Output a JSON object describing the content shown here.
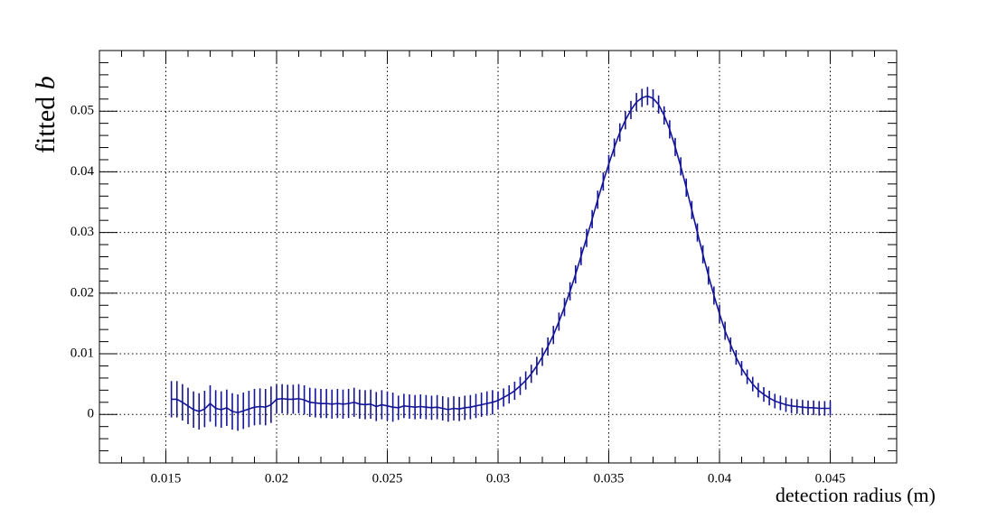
{
  "chart_data": {
    "type": "errorbar_line",
    "x_label": "detection radius (m)",
    "y_label": {
      "text": "fitted",
      "variable": "b"
    },
    "xlim": [
      0.012,
      0.048
    ],
    "ylim": [
      -0.008,
      0.06
    ],
    "xticks": [
      0.015,
      0.02,
      0.025,
      0.03,
      0.035,
      0.04,
      0.045
    ],
    "yticks": [
      0,
      0.01,
      0.02,
      0.03,
      0.04,
      0.05
    ],
    "grid": true,
    "x": [
      0.01525,
      0.0155,
      0.01575,
      0.016,
      0.01625,
      0.0165,
      0.01675,
      0.017,
      0.01725,
      0.0175,
      0.01775,
      0.018,
      0.01825,
      0.0185,
      0.01875,
      0.019,
      0.01925,
      0.0195,
      0.01975,
      0.02,
      0.02025,
      0.0205,
      0.02075,
      0.021,
      0.02125,
      0.0215,
      0.02175,
      0.022,
      0.02225,
      0.0225,
      0.02275,
      0.023,
      0.02325,
      0.0235,
      0.02375,
      0.024,
      0.02425,
      0.0245,
      0.02475,
      0.025,
      0.02525,
      0.0255,
      0.02575,
      0.026,
      0.02625,
      0.0265,
      0.02675,
      0.027,
      0.02725,
      0.0275,
      0.02775,
      0.028,
      0.02825,
      0.0285,
      0.02875,
      0.029,
      0.02925,
      0.0295,
      0.02975,
      0.03,
      0.03025,
      0.0305,
      0.03075,
      0.031,
      0.03125,
      0.0315,
      0.03175,
      0.032,
      0.03225,
      0.0325,
      0.03275,
      0.033,
      0.03325,
      0.0335,
      0.03375,
      0.034,
      0.03425,
      0.0345,
      0.03475,
      0.035,
      0.03525,
      0.0355,
      0.03575,
      0.036,
      0.03625,
      0.0365,
      0.03675,
      0.037,
      0.03725,
      0.0375,
      0.03775,
      0.038,
      0.03825,
      0.0385,
      0.03875,
      0.039,
      0.03925,
      0.0395,
      0.03975,
      0.04,
      0.04025,
      0.0405,
      0.04075,
      0.041,
      0.04125,
      0.0415,
      0.04175,
      0.042,
      0.04225,
      0.0425,
      0.04275,
      0.043,
      0.04325,
      0.0435,
      0.04375,
      0.044,
      0.04425,
      0.0445,
      0.04475,
      0.045
    ],
    "series": [
      {
        "color": "#141496",
        "values": [
          0.0025,
          0.0025,
          0.002,
          0.0014,
          0.0008,
          0.0005,
          0.0009,
          0.0018,
          0.001,
          0.0008,
          0.0011,
          0.0005,
          0.0003,
          0.0006,
          0.0009,
          0.0012,
          0.0013,
          0.0012,
          0.0016,
          0.0025,
          0.0026,
          0.0025,
          0.0025,
          0.0026,
          0.0024,
          0.002,
          0.0019,
          0.0018,
          0.0018,
          0.0017,
          0.0018,
          0.0017,
          0.0018,
          0.002,
          0.0017,
          0.0016,
          0.0017,
          0.0013,
          0.0016,
          0.0014,
          0.0012,
          0.0011,
          0.0014,
          0.0013,
          0.0012,
          0.0013,
          0.0012,
          0.0011,
          0.0012,
          0.001,
          0.0008,
          0.001,
          0.0009,
          0.0011,
          0.0012,
          0.0014,
          0.0016,
          0.0018,
          0.002,
          0.0023,
          0.0028,
          0.0033,
          0.0039,
          0.0047,
          0.0056,
          0.0067,
          0.008,
          0.0095,
          0.0112,
          0.0131,
          0.0153,
          0.0177,
          0.0203,
          0.0231,
          0.0261,
          0.0291,
          0.0322,
          0.0354,
          0.0384,
          0.0413,
          0.044,
          0.0465,
          0.0485,
          0.0502,
          0.0515,
          0.0522,
          0.0525,
          0.0521,
          0.0511,
          0.0493,
          0.047,
          0.0441,
          0.0409,
          0.0374,
          0.0337,
          0.03,
          0.0264,
          0.0229,
          0.0196,
          0.0166,
          0.0138,
          0.0115,
          0.0094,
          0.0076,
          0.0062,
          0.005,
          0.004,
          0.0033,
          0.0027,
          0.0022,
          0.0019,
          0.0016,
          0.0014,
          0.0013,
          0.0012,
          0.0011,
          0.0011,
          0.001,
          0.001,
          0.001
        ],
        "errors": [
          0.003,
          0.003,
          0.003,
          0.003,
          0.003,
          0.003,
          0.003,
          0.003,
          0.003,
          0.003,
          0.003,
          0.003,
          0.003,
          0.003,
          0.003,
          0.003,
          0.003,
          0.003,
          0.003,
          0.0024,
          0.0024,
          0.0024,
          0.0024,
          0.0024,
          0.0024,
          0.0024,
          0.0024,
          0.0024,
          0.0024,
          0.0024,
          0.0024,
          0.0024,
          0.0024,
          0.0024,
          0.0024,
          0.0024,
          0.0024,
          0.0024,
          0.0024,
          0.0024,
          0.0024,
          0.002,
          0.002,
          0.002,
          0.002,
          0.002,
          0.002,
          0.002,
          0.002,
          0.002,
          0.002,
          0.002,
          0.002,
          0.002,
          0.002,
          0.002,
          0.002,
          0.002,
          0.002,
          0.0015,
          0.0015,
          0.0015,
          0.0015,
          0.0015,
          0.0015,
          0.0015,
          0.0015,
          0.0015,
          0.0015,
          0.0015,
          0.0015,
          0.0015,
          0.0015,
          0.0015,
          0.0015,
          0.0015,
          0.0015,
          0.0015,
          0.0015,
          0.0015,
          0.0015,
          0.0015,
          0.0015,
          0.0015,
          0.0015,
          0.0015,
          0.0015,
          0.0015,
          0.0015,
          0.0015,
          0.0015,
          0.0015,
          0.0015,
          0.0015,
          0.0015,
          0.0015,
          0.0015,
          0.0015,
          0.0015,
          0.0015,
          0.0015,
          0.0012,
          0.0012,
          0.0012,
          0.0012,
          0.0012,
          0.0012,
          0.0012,
          0.0012,
          0.0012,
          0.0012,
          0.0012,
          0.0012,
          0.0012,
          0.0012,
          0.0012,
          0.0012,
          0.0012,
          0.0012,
          0.0012
        ]
      }
    ]
  }
}
